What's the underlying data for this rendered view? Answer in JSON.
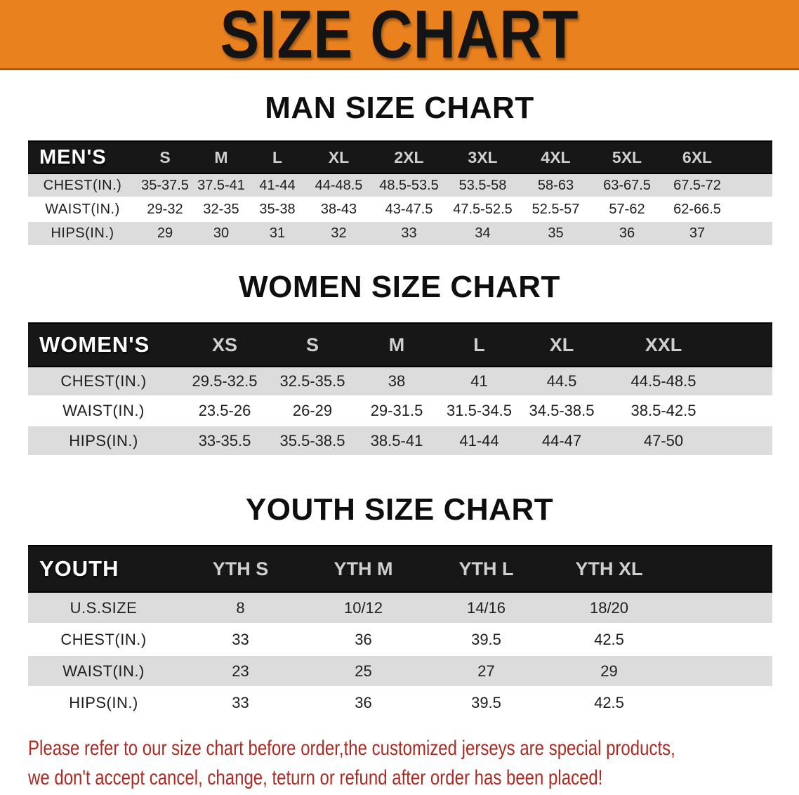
{
  "banner": {
    "title": "SIZE CHART"
  },
  "colors": {
    "banner_bg": "#e8811e",
    "banner_edge": "#a85a12",
    "header_bg": "#171717",
    "stripe": "#dcdcdc",
    "text_dark": "#1e1e1e",
    "disclaimer_red": "#ab2b23"
  },
  "sections": [
    {
      "key": "mens",
      "title": "MAN SIZE CHART",
      "header_label": "MEN'S",
      "columns": [
        "S",
        "M",
        "L",
        "XL",
        "2XL",
        "3XL",
        "4XL",
        "5XL",
        "6XL"
      ],
      "rows": [
        {
          "label": "CHEST(IN.)",
          "values": [
            "35-37.5",
            "37.5-41",
            "41-44",
            "44-48.5",
            "48.5-53.5",
            "53.5-58",
            "58-63",
            "63-67.5",
            "67.5-72"
          ]
        },
        {
          "label": "WAIST(IN.)",
          "values": [
            "29-32",
            "32-35",
            "35-38",
            "38-43",
            "43-47.5",
            "47.5-52.5",
            "52.5-57",
            "57-62",
            "62-66.5"
          ]
        },
        {
          "label": "HIPS(IN.)",
          "values": [
            "29",
            "30",
            "31",
            "32",
            "33",
            "34",
            "35",
            "36",
            "37"
          ]
        }
      ]
    },
    {
      "key": "womens",
      "title": "WOMEN SIZE CHART",
      "header_label": "WOMEN'S",
      "columns": [
        "XS",
        "S",
        "M",
        "L",
        "XL",
        "XXL"
      ],
      "rows": [
        {
          "label": "CHEST(IN.)",
          "values": [
            "29.5-32.5",
            "32.5-35.5",
            "38",
            "41",
            "44.5",
            "44.5-48.5"
          ]
        },
        {
          "label": "WAIST(IN.)",
          "values": [
            "23.5-26",
            "26-29",
            "29-31.5",
            "31.5-34.5",
            "34.5-38.5",
            "38.5-42.5"
          ]
        },
        {
          "label": "HIPS(IN.)",
          "values": [
            "33-35.5",
            "35.5-38.5",
            "38.5-41",
            "41-44",
            "44-47",
            "47-50"
          ]
        }
      ]
    },
    {
      "key": "youth",
      "title": "YOUTH SIZE CHART",
      "header_label": "YOUTH",
      "columns": [
        "YTH S",
        "YTH M",
        "YTH L",
        "YTH XL"
      ],
      "rows": [
        {
          "label": "U.S.SIZE",
          "values": [
            "8",
            "10/12",
            "14/16",
            "18/20"
          ]
        },
        {
          "label": "CHEST(IN.)",
          "values": [
            "33",
            "36",
            "39.5",
            "42.5"
          ]
        },
        {
          "label": "WAIST(IN.)",
          "values": [
            "23",
            "25",
            "27",
            "29"
          ]
        },
        {
          "label": "HIPS(IN.)",
          "values": [
            "33",
            "36",
            "39.5",
            "42.5"
          ]
        }
      ]
    }
  ],
  "disclaimer": {
    "line1": "Please refer to our size chart before order,the customized jerseys are special products,",
    "line2": "we don't accept cancel, change, teturn or refund after order has been placed!"
  }
}
